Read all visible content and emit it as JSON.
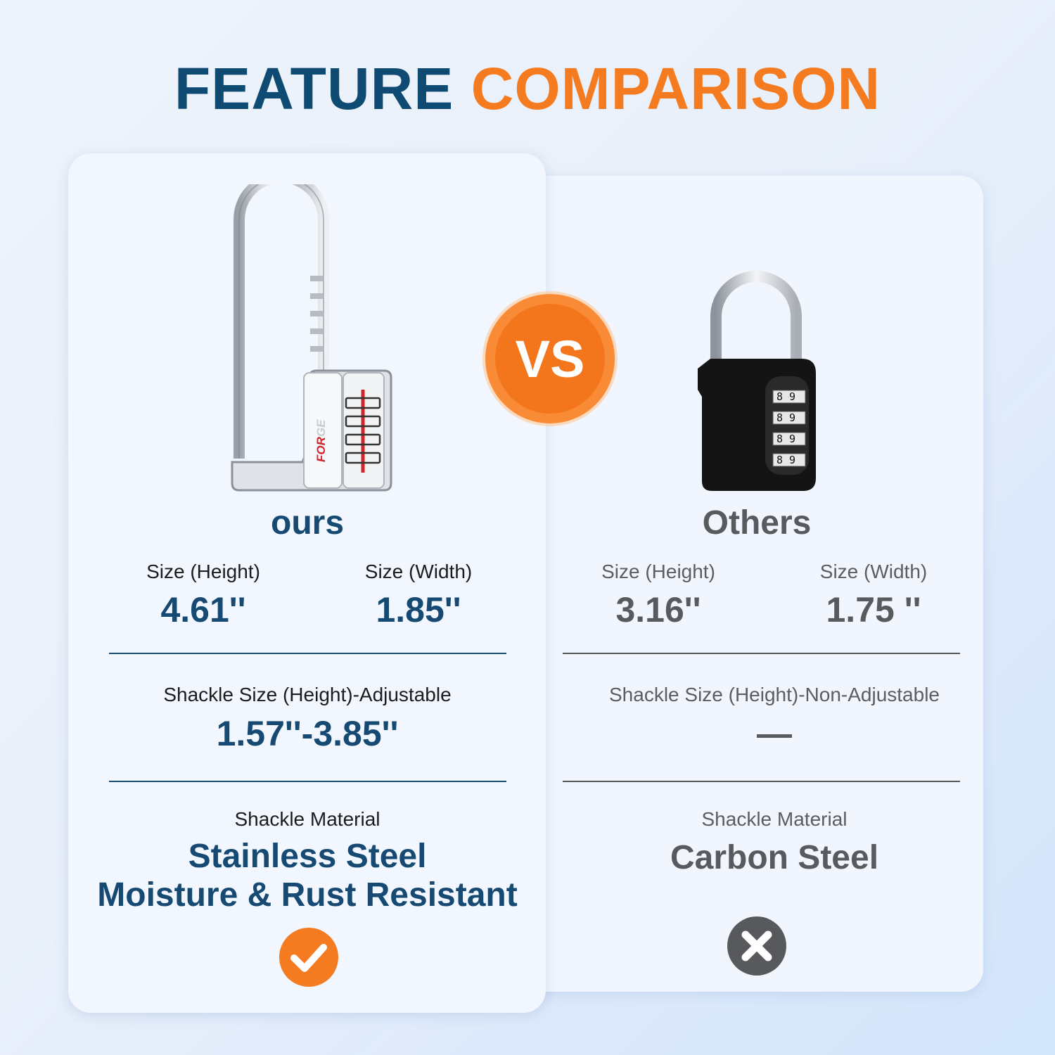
{
  "title": {
    "part1": "FEATURE",
    "part2": "COMPARISON"
  },
  "colors": {
    "navy": "#0f4a72",
    "orange": "#f47b20",
    "gray": "#585a5e"
  },
  "vs": "VS",
  "ours": {
    "name": "ours",
    "logo_text": "FORGE",
    "size_height": {
      "label": "Size (Height)",
      "value": "4.61''"
    },
    "size_width": {
      "label": "Size (Width)",
      "value": "1.85''"
    },
    "shackle_size": {
      "label": "Shackle Size (Height)-Adjustable",
      "value": "1.57''-3.85''"
    },
    "shackle_material": {
      "label": "Shackle Material",
      "line1": "Stainless Steel",
      "line2": "Moisture & Rust Resistant"
    },
    "result_icon": "check-icon"
  },
  "others": {
    "name": "Others",
    "dial_digits": "89",
    "size_height": {
      "label": "Size (Height)",
      "value": "3.16''"
    },
    "size_width": {
      "label": "Size (Width)",
      "value": "1.75 ''"
    },
    "shackle_size": {
      "label": "Shackle Size (Height)-Non-Adjustable",
      "value": "—"
    },
    "shackle_material": {
      "label": "Shackle Material",
      "line1": "Carbon Steel"
    },
    "result_icon": "x-icon"
  }
}
